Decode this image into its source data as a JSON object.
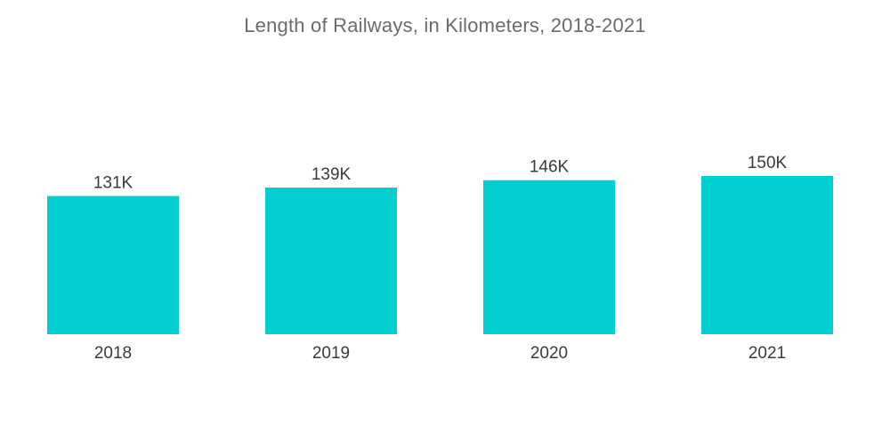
{
  "chart_data": {
    "type": "bar",
    "title": "Length of Railways, in Kilometers, 2018-2021",
    "categories": [
      "2018",
      "2019",
      "2020",
      "2021"
    ],
    "values": [
      131000,
      139000,
      146000,
      150000
    ],
    "data_labels": [
      "131K",
      "139K",
      "146K",
      "150K"
    ],
    "ylim": [
      0,
      150000
    ],
    "grid": false,
    "legend": "none",
    "bar_color": "#00ced1"
  }
}
